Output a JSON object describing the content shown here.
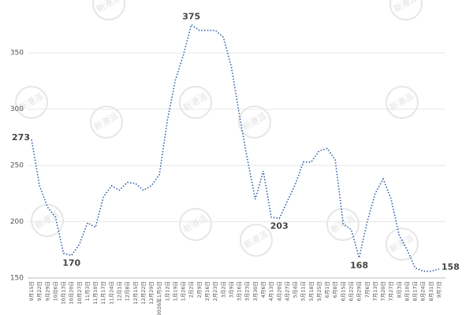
{
  "chart_data": {
    "type": "line",
    "categories": [
      "9月15日",
      "9月22日",
      "9月29日",
      "10月6日",
      "10月13日",
      "10月20日",
      "10月27日",
      "11月3日",
      "11月10日",
      "11月17日",
      "11月24日",
      "12月1日",
      "12月8日",
      "12月15日",
      "12月22日",
      "12月29日",
      "2026年1月5日",
      "1月12日",
      "1月19日",
      "1月26日",
      "2月2日",
      "2月9日",
      "2月16日",
      "2月23日",
      "3月2日",
      "3月9日",
      "3月16日",
      "3月23日",
      "3月30日",
      "4月6日",
      "4月13日",
      "4月20日",
      "4月27日",
      "5月4日",
      "5月11日",
      "5月18日",
      "5月25日",
      "6月1日",
      "6月8日",
      "6月15日",
      "6月22日",
      "6月29日",
      "7月6日",
      "7月13日",
      "7月20日",
      "7月27日",
      "8月3日",
      "8月10日",
      "8月17日",
      "8月24日",
      "8月31日",
      "9月7日"
    ],
    "values": [
      273,
      232,
      213,
      204,
      172,
      170,
      180,
      199,
      195,
      222,
      232,
      228,
      235,
      234,
      228,
      232,
      242,
      290,
      326,
      348,
      375,
      370,
      370,
      370,
      364,
      338,
      295,
      256,
      220,
      245,
      204,
      203,
      218,
      233,
      253,
      253,
      263,
      265,
      255,
      198,
      193,
      168,
      200,
      225,
      238,
      220,
      188,
      175,
      159,
      156,
      156,
      158
    ],
    "value_labels": [
      "273",
      null,
      null,
      null,
      null,
      "170",
      null,
      null,
      null,
      null,
      null,
      null,
      null,
      null,
      null,
      null,
      null,
      null,
      null,
      null,
      "375",
      null,
      null,
      null,
      null,
      null,
      null,
      null,
      null,
      null,
      null,
      "203",
      null,
      null,
      null,
      null,
      null,
      null,
      null,
      null,
      null,
      "168",
      null,
      null,
      null,
      null,
      null,
      null,
      null,
      null,
      null,
      "158"
    ],
    "color": "#2e5fa8",
    "ylim": [
      150,
      397
    ],
    "yticks": [
      150,
      200,
      250,
      300,
      350
    ],
    "grid": true,
    "watermark": "新港派"
  }
}
